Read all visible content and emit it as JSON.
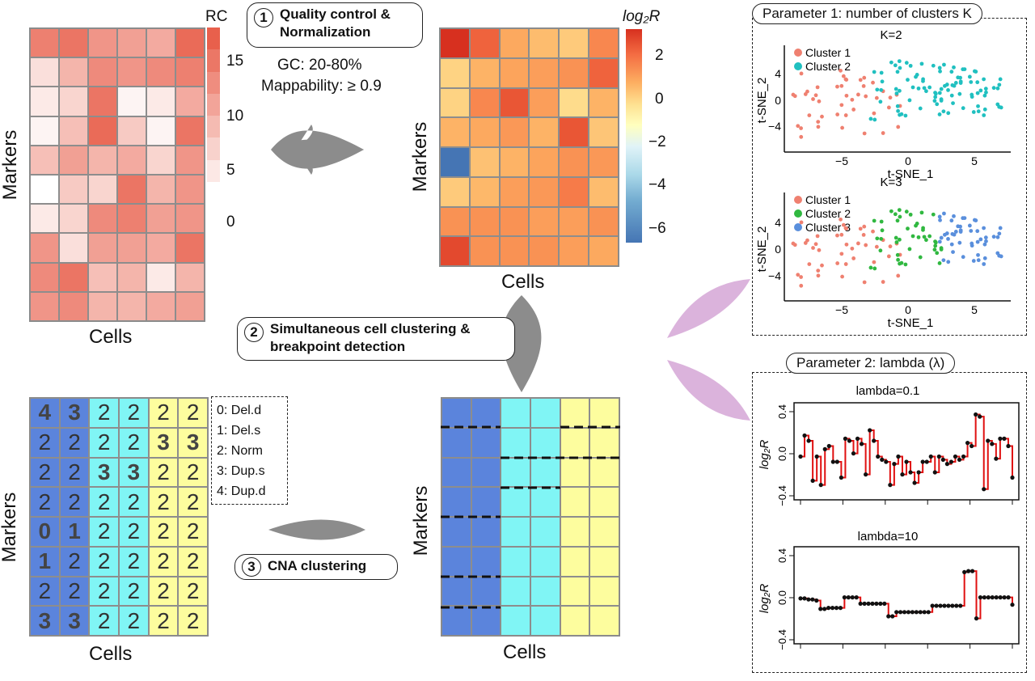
{
  "steps": {
    "s1": {
      "num": "1",
      "label": "Quality control & Normalization",
      "filter_gc": "GC: 20-80%",
      "filter_map": "Mappability: ≥ 0.9"
    },
    "s2": {
      "num": "2",
      "label": "Simultaneous cell clustering & breakpoint detection"
    },
    "s3": {
      "num": "3",
      "label": "CNA clustering"
    }
  },
  "axes": {
    "markers": "Markers",
    "cells": "Cells"
  },
  "rc_heatmap": {
    "legend_title": "RC",
    "legend_ticks": [
      "15",
      "10",
      "5",
      "0"
    ],
    "values": [
      [
        12,
        13,
        10,
        9,
        8,
        14
      ],
      [
        3,
        7,
        11,
        10,
        11,
        12
      ],
      [
        2,
        4,
        13,
        1,
        2,
        8
      ],
      [
        1,
        6,
        14,
        5,
        1,
        13
      ],
      [
        6,
        9,
        7,
        8,
        4,
        10
      ],
      [
        0,
        5,
        4,
        13,
        7,
        10
      ],
      [
        2,
        4,
        11,
        12,
        9,
        10
      ],
      [
        10,
        3,
        9,
        9,
        8,
        13
      ],
      [
        11,
        13,
        6,
        7,
        2,
        7
      ],
      [
        10,
        11,
        7,
        7,
        8,
        9
      ]
    ],
    "color_low": "#ffffff",
    "color_high": "#e8604c"
  },
  "logr_heatmap": {
    "legend_title": "log₂R",
    "legend_ticks": [
      "2",
      "0",
      "−2",
      "−4",
      "−6"
    ],
    "values": [
      [
        3.2,
        2.4,
        1.2,
        0.8,
        0.5,
        1.8
      ],
      [
        0.3,
        1.0,
        1.3,
        1.4,
        1.6,
        2.4
      ],
      [
        0.3,
        1.8,
        2.6,
        1.4,
        0.1,
        1.0
      ],
      [
        1.0,
        1.2,
        1.5,
        1.0,
        2.6,
        0.6
      ],
      [
        -6.2,
        0.7,
        1.0,
        1.3,
        1.6,
        1.5
      ],
      [
        0.5,
        0.9,
        1.4,
        1.5,
        2.0,
        0.8
      ],
      [
        1.6,
        1.6,
        1.6,
        1.4,
        1.4,
        1.6
      ],
      [
        2.8,
        1.6,
        1.6,
        1.6,
        1.4,
        1.2
      ]
    ]
  },
  "cluster_colors": [
    "#5b84dc",
    "#80f5f5",
    "#fdfd9e"
  ],
  "cna_matrix": {
    "rows": [
      [
        "4",
        "3",
        "2",
        "2",
        "2",
        "2"
      ],
      [
        "2",
        "2",
        "2",
        "2",
        "3",
        "3"
      ],
      [
        "2",
        "2",
        "3",
        "3",
        "2",
        "2"
      ],
      [
        "2",
        "2",
        "2",
        "2",
        "2",
        "2"
      ],
      [
        "0",
        "1",
        "2",
        "2",
        "2",
        "2"
      ],
      [
        "1",
        "2",
        "2",
        "2",
        "2",
        "2"
      ],
      [
        "2",
        "2",
        "2",
        "2",
        "2",
        "2"
      ],
      [
        "3",
        "3",
        "2",
        "2",
        "2",
        "2"
      ]
    ],
    "legend": [
      "0: Del.d",
      "1: Del.s",
      "2: Norm",
      "3: Dup.s",
      "4: Dup.d"
    ]
  },
  "param1": {
    "title": "Parameter 1: number of clusters K",
    "k2": {
      "title": "K=2",
      "legend": [
        "Cluster 1",
        "Cluster 2"
      ],
      "colors": [
        "#ef8070",
        "#20c0c0"
      ]
    },
    "k3": {
      "title": "K=3",
      "legend": [
        "Cluster 1",
        "Cluster 2",
        "Cluster 3"
      ],
      "colors": [
        "#ef8070",
        "#30b840",
        "#5a8fdc"
      ]
    },
    "xlabel": "t-SNE_1",
    "ylabel": "t-SNE_2",
    "xticks": [
      "−5",
      "0",
      "5"
    ],
    "yticks": [
      "4",
      "0",
      "−4"
    ]
  },
  "param2": {
    "title": "Parameter 2: lambda (λ)",
    "p1": {
      "title": "lambda=0.1"
    },
    "p2": {
      "title": "lambda=10"
    },
    "ylabel": "log₂R",
    "yticks": [
      "0.4",
      "0.0",
      "−0.4"
    ]
  },
  "chart_data": [
    {
      "type": "line",
      "title": "lambda=0.1",
      "ylabel": "log₂R",
      "ylim": [
        -0.4,
        0.4
      ],
      "series": [
        {
          "values": [
            -0.05,
            0.15,
            0.1,
            -0.28,
            -0.05,
            -0.32,
            0.02,
            0.05,
            -0.1,
            -0.1,
            -0.25,
            0.12,
            0.1,
            -0.02,
            0.12,
            0.07,
            -0.22,
            0.2,
            0.1,
            -0.05,
            -0.08,
            -0.1,
            -0.32,
            -0.12,
            -0.05,
            -0.22,
            -0.1,
            -0.2,
            -0.3,
            -0.2,
            -0.1,
            -0.1,
            -0.05,
            -0.2,
            -0.05,
            -0.08,
            -0.12,
            -0.1,
            -0.05,
            -0.08,
            -0.05,
            0.08,
            0.05,
            0.35,
            0.33,
            -0.36,
            0.1,
            0.07,
            -0.07,
            0.12,
            0.12,
            0.05,
            -0.25
          ]
        }
      ]
    },
    {
      "type": "line",
      "title": "lambda=10",
      "ylabel": "log₂R",
      "ylim": [
        -0.4,
        0.4
      ],
      "series": [
        {
          "values": [
            -0.03,
            -0.03,
            -0.04,
            -0.04,
            -0.05,
            -0.13,
            -0.13,
            -0.12,
            -0.12,
            -0.12,
            -0.12,
            -0.02,
            -0.02,
            -0.02,
            -0.02,
            -0.08,
            -0.08,
            -0.08,
            -0.08,
            -0.08,
            -0.08,
            -0.08,
            -0.2,
            -0.2,
            -0.16,
            -0.16,
            -0.16,
            -0.16,
            -0.16,
            -0.16,
            -0.16,
            -0.16,
            -0.16,
            -0.1,
            -0.1,
            -0.1,
            -0.1,
            -0.1,
            -0.1,
            -0.1,
            -0.1,
            0.22,
            0.23,
            0.23,
            -0.22,
            -0.02,
            -0.02,
            -0.02,
            -0.02,
            -0.02,
            -0.02,
            -0.02,
            -0.02,
            -0.09
          ]
        }
      ]
    }
  ]
}
